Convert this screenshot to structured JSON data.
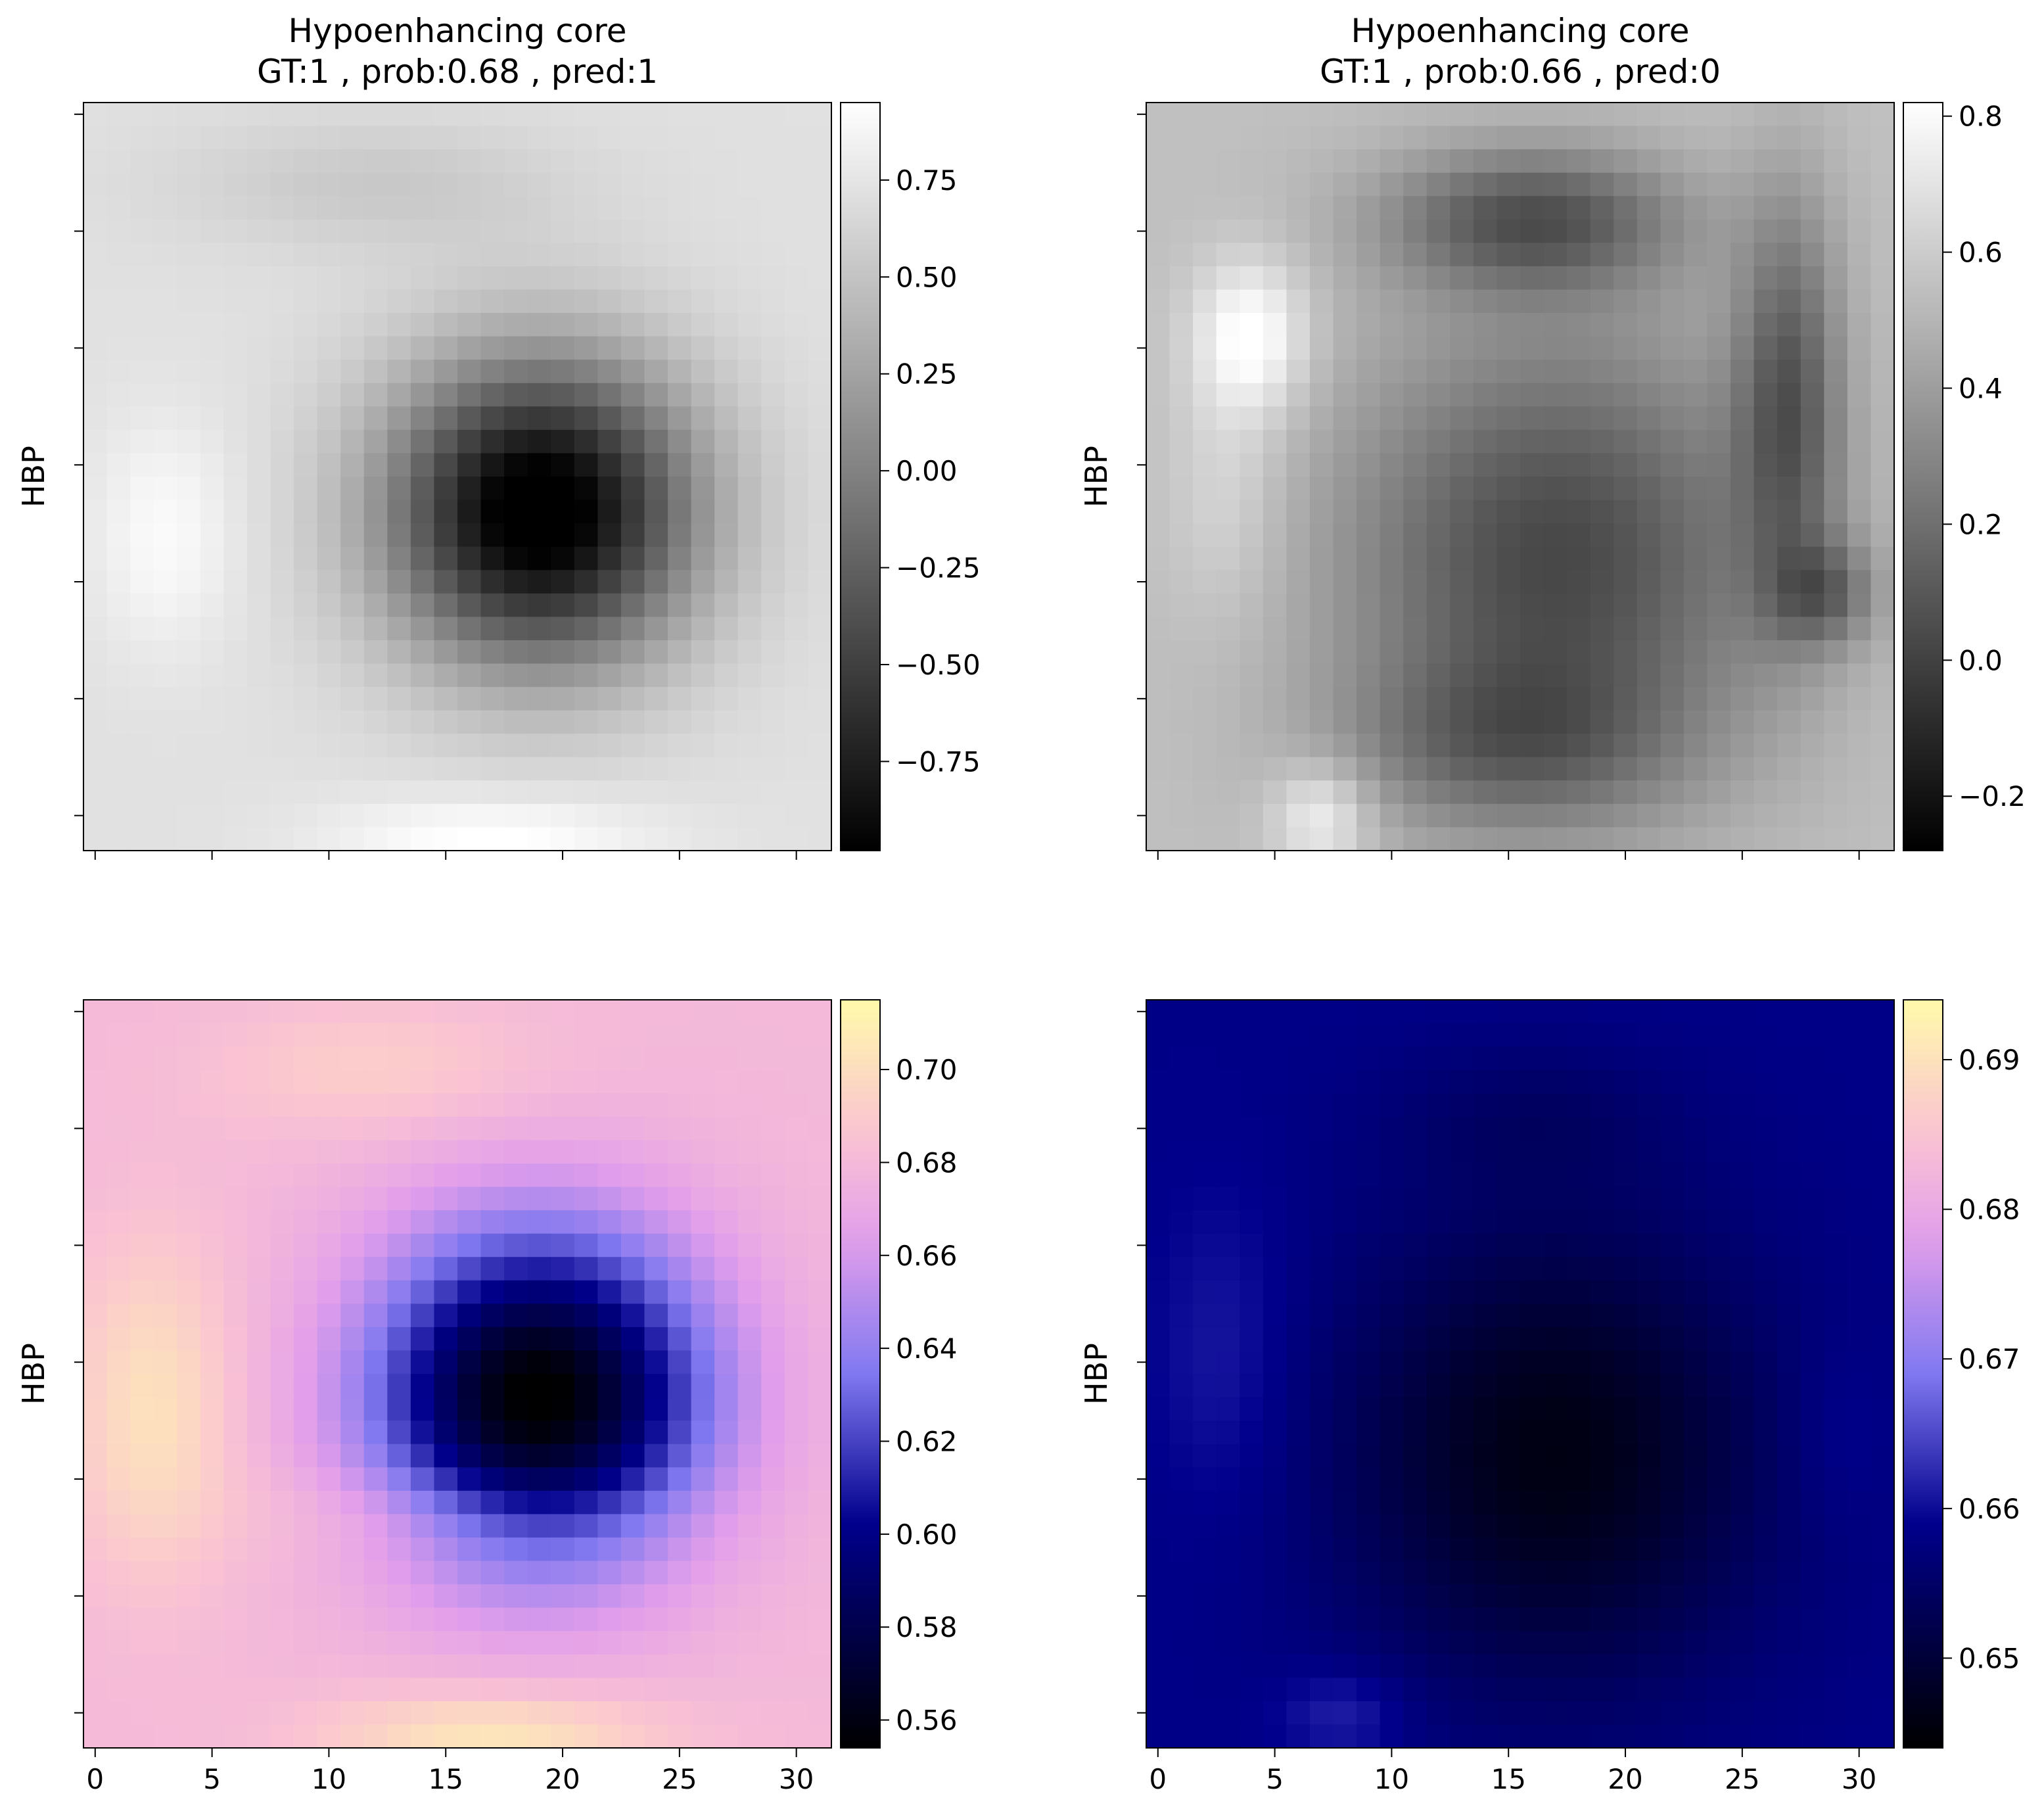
{
  "chart_data": [
    {
      "type": "heatmap",
      "title": "Hypoenhancing core",
      "subtitle": "GT:1 , prob:0.68 , pred:1",
      "ylabel": "HBP",
      "colormap": "gray",
      "grid_size": 32,
      "vmin": -0.98,
      "vmax": 0.95,
      "colorbar_ticks": [
        -0.75,
        -0.5,
        -0.25,
        0.0,
        0.25,
        0.5,
        0.75
      ],
      "colorbar_labels": [
        "−0.75",
        "−0.50",
        "−0.25",
        "0.00",
        "0.25",
        "0.50",
        "0.75"
      ],
      "xticks": [
        0,
        5,
        10,
        15,
        20,
        25,
        30
      ],
      "xtick_labels_visible": false,
      "field": {
        "base": 0.72,
        "blobs": [
          {
            "cx": 19,
            "cy": 17,
            "sx": 4.6,
            "sy": 4.6,
            "a": -1.85
          },
          {
            "cx": 3,
            "cy": 18,
            "sx": 2.2,
            "sy": 3.5,
            "a": 0.2
          },
          {
            "cx": 17,
            "cy": 31,
            "sx": 5,
            "sy": 1.4,
            "a": 0.25
          },
          {
            "cx": 12,
            "cy": 3,
            "sx": 6,
            "sy": 2,
            "a": -0.18
          }
        ]
      }
    },
    {
      "type": "heatmap",
      "title": "Hypoenhancing core",
      "subtitle": "GT:1 , prob:0.66 , pred:0",
      "ylabel": "HBP",
      "colormap": "gray",
      "grid_size": 32,
      "vmin": -0.28,
      "vmax": 0.82,
      "colorbar_ticks": [
        -0.2,
        0.0,
        0.2,
        0.4,
        0.6,
        0.8
      ],
      "colorbar_labels": [
        "−0.2",
        "0.0",
        "0.2",
        "0.4",
        "0.6",
        "0.8"
      ],
      "xticks": [
        0,
        5,
        10,
        15,
        20,
        25,
        30
      ],
      "xtick_labels_visible": false,
      "field": {
        "base": 0.55,
        "blobs": [
          {
            "cx": 17,
            "cy": 19,
            "sx": 6.5,
            "sy": 7,
            "a": -0.52
          },
          {
            "cx": 15,
            "cy": 27,
            "sx": 5,
            "sy": 2.5,
            "a": -0.25
          },
          {
            "cx": 16,
            "cy": 4.5,
            "sx": 4.5,
            "sy": 2.2,
            "a": -0.45
          },
          {
            "cx": 27,
            "cy": 12,
            "sx": 1.6,
            "sy": 6,
            "a": -0.4
          },
          {
            "cx": 28.5,
            "cy": 20.5,
            "sx": 1.6,
            "sy": 1.6,
            "a": -0.3
          },
          {
            "cx": 4,
            "cy": 9.5,
            "sx": 1.7,
            "sy": 2.3,
            "a": 0.3
          },
          {
            "cx": 7,
            "cy": 30,
            "sx": 1.5,
            "sy": 1.6,
            "a": 0.25
          },
          {
            "cx": 3,
            "cy": 16,
            "sx": 1.8,
            "sy": 4,
            "a": 0.12
          }
        ]
      }
    },
    {
      "type": "heatmap",
      "ylabel": "HBP",
      "colormap": "gnuplot2",
      "grid_size": 32,
      "vmin": 0.554,
      "vmax": 0.715,
      "colorbar_ticks": [
        0.56,
        0.58,
        0.6,
        0.62,
        0.64,
        0.66,
        0.68,
        0.7
      ],
      "colorbar_labels": [
        "0.56",
        "0.58",
        "0.60",
        "0.62",
        "0.64",
        "0.66",
        "0.68",
        "0.70"
      ],
      "xticks": [
        0,
        5,
        10,
        15,
        20,
        25,
        30
      ],
      "xtick_labels": [
        "0",
        "5",
        "10",
        "15",
        "20",
        "25",
        "30"
      ],
      "field": {
        "base": 0.68,
        "blobs": [
          {
            "cx": 19,
            "cy": 16.5,
            "sx": 5,
            "sy": 5,
            "a": -0.128
          },
          {
            "cx": 2.5,
            "cy": 17,
            "sx": 2.5,
            "sy": 5,
            "a": 0.022
          },
          {
            "cx": 17,
            "cy": 31,
            "sx": 5,
            "sy": 1.4,
            "a": 0.025
          },
          {
            "cx": 12,
            "cy": 2.5,
            "sx": 5,
            "sy": 2,
            "a": 0.012
          },
          {
            "cx": 16,
            "cy": 21.5,
            "sx": 6,
            "sy": 1.6,
            "a": 0.012
          }
        ]
      }
    },
    {
      "type": "heatmap",
      "ylabel": "HBP",
      "colormap": "gnuplot2",
      "grid_size": 32,
      "vmin": 0.644,
      "vmax": 0.694,
      "colorbar_ticks": [
        0.65,
        0.66,
        0.67,
        0.68,
        0.69
      ],
      "colorbar_labels": [
        "0.65",
        "0.66",
        "0.67",
        "0.68",
        "0.69"
      ],
      "xticks": [
        0,
        5,
        10,
        15,
        20,
        25,
        30
      ],
      "xtick_labels": [
        "0",
        "5",
        "10",
        "15",
        "20",
        "25",
        "30"
      ],
      "field": {
        "base": 0.6585,
        "blobs": [
          {
            "cx": 17,
            "cy": 19,
            "sx": 6.5,
            "sy": 7,
            "a": -0.0125
          },
          {
            "cx": 16,
            "cy": 4.5,
            "sx": 4.5,
            "sy": 2.2,
            "a": -0.003
          },
          {
            "cx": 3,
            "cy": 15,
            "sx": 2.2,
            "sy": 5,
            "a": 0.003
          },
          {
            "cx": 8,
            "cy": 30,
            "sx": 2,
            "sy": 1.4,
            "a": 0.004
          },
          {
            "cx": 29,
            "cy": 18,
            "sx": 1.5,
            "sy": 3,
            "a": 0.002
          }
        ]
      }
    }
  ]
}
